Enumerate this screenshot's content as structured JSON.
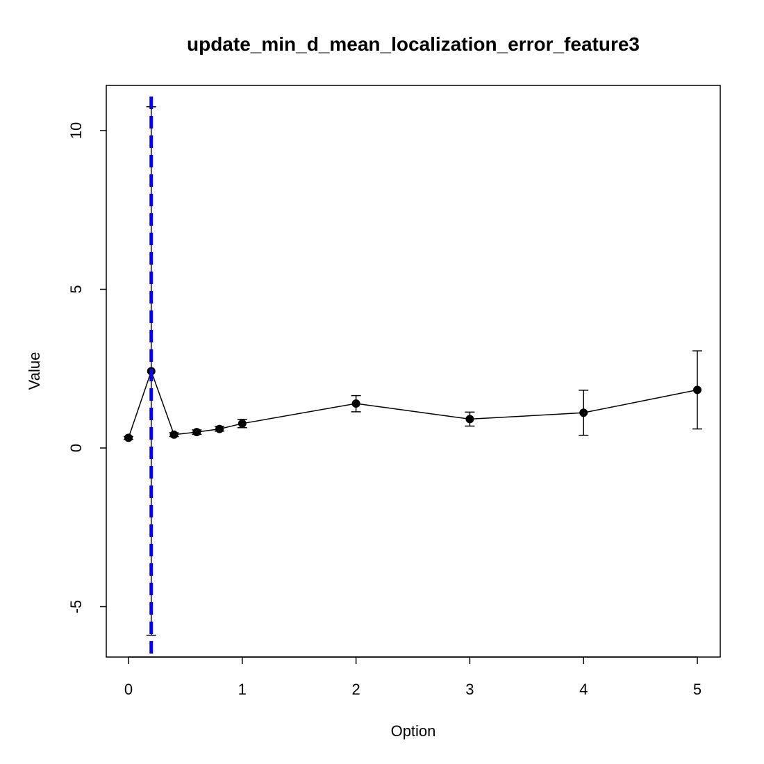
{
  "chart_data": {
    "type": "line",
    "title": "update_min_d_mean_localization_error_feature3",
    "xlabel": "Option",
    "ylabel": "Value",
    "x_ticks": [
      0,
      1,
      2,
      3,
      4,
      5
    ],
    "y_ticks": [
      -5,
      0,
      5,
      10
    ],
    "xlim": [
      -0.2,
      5.2
    ],
    "ylim": [
      -6.6,
      11.4
    ],
    "grid": false,
    "legend": "none",
    "series": [
      {
        "x": [
          0,
          0.2,
          0.4,
          0.6,
          0.8,
          1,
          2,
          3,
          4,
          5
        ],
        "y": [
          0.32,
          2.42,
          0.42,
          0.5,
          0.6,
          0.77,
          1.4,
          0.91,
          1.11,
          1.83
        ],
        "err_low": [
          0.27,
          -5.9,
          0.36,
          0.43,
          0.53,
          0.64,
          1.14,
          0.69,
          0.4,
          0.6
        ],
        "err_high": [
          0.36,
          10.75,
          0.48,
          0.57,
          0.68,
          0.9,
          1.65,
          1.13,
          1.82,
          3.06
        ],
        "color": "#000000"
      }
    ],
    "reference_line": {
      "x": 0.2,
      "color": "#0000ff",
      "style": "dashed"
    }
  }
}
